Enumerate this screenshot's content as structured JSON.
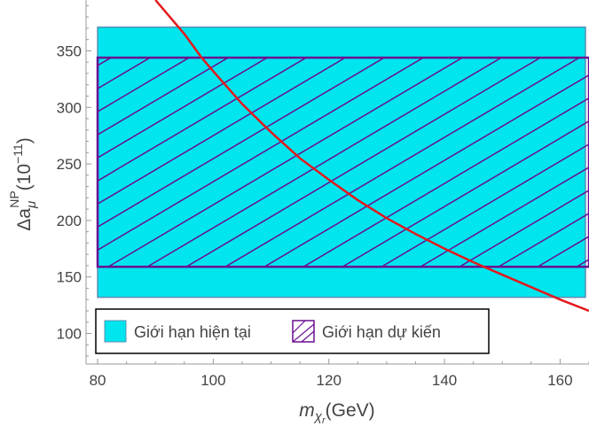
{
  "chart_data": {
    "type": "line",
    "title": "",
    "xlabel": {
      "base": "m",
      "sub1": "χ",
      "sub2": "r",
      "unit": "(GeV)"
    },
    "ylabel": {
      "base": "Δa",
      "sub": "μ",
      "sup": "NP",
      "unit": "(10",
      "unit_exp": "−11",
      "unit_close": ")"
    },
    "xlim": [
      78,
      165
    ],
    "ylim": [
      73,
      395
    ],
    "x_ticks": [
      80,
      100,
      120,
      140,
      160
    ],
    "y_ticks": [
      100,
      150,
      200,
      250,
      300,
      350
    ],
    "grid": false,
    "bands": [
      {
        "name": "Giới hạn hiện tại",
        "x_range": [
          80,
          165
        ],
        "y_range": [
          132,
          371
        ],
        "fill": "#00e5ee",
        "edge": "#5b8fb3",
        "hatched": false
      },
      {
        "name": "Giới hạn dự kiến",
        "x_range": [
          80,
          165
        ],
        "y_range": [
          159,
          344
        ],
        "fill": "none",
        "edge": "#6a0d91",
        "hatched": true
      }
    ],
    "series": [
      {
        "color": "#e31a1c",
        "x": [
          90,
          95,
          98,
          100,
          105,
          110,
          115,
          120,
          125,
          130,
          135,
          140,
          145,
          150,
          155,
          160,
          165
        ],
        "y": [
          395,
          365,
          344,
          332,
          303,
          278,
          255,
          236,
          218,
          202,
          188,
          175,
          163,
          152,
          141,
          130,
          120
        ]
      }
    ],
    "legend": {
      "position": "bottom-left",
      "entries": [
        {
          "label": "Giới hạn hiện tại",
          "swatch": "filled",
          "color": "#00e5ee"
        },
        {
          "label": "Giới hạn dự kiến",
          "swatch": "hatched",
          "color": "#6a0d91"
        }
      ]
    }
  }
}
